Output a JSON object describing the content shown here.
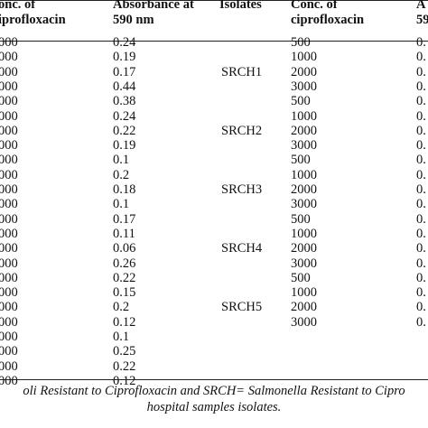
{
  "table": {
    "headers": {
      "conc_left_line1": "onc.  of",
      "conc_left_line2": "iprofloxacin",
      "absorbance_left_line1": "Absorbance at",
      "absorbance_left_line2": "590 nm",
      "isolates": "Isolates",
      "conc_right_line1": "Conc.  of",
      "conc_right_line2": "ciprofloxacin",
      "absorbance_right_line1": "A",
      "absorbance_right_line2": "59"
    },
    "left_rows": [
      {
        "conc": "000",
        "abs": "0.24"
      },
      {
        "conc": "000",
        "abs": "0.19"
      },
      {
        "conc": "000",
        "abs": "0.17"
      },
      {
        "conc": "000",
        "abs": "0.44"
      },
      {
        "conc": "000",
        "abs": "0.38"
      },
      {
        "conc": "000",
        "abs": "0.24"
      },
      {
        "conc": "000",
        "abs": "0.22"
      },
      {
        "conc": "000",
        "abs": "0.19"
      },
      {
        "conc": "000",
        "abs": "0.1"
      },
      {
        "conc": "000",
        "abs": "0.2"
      },
      {
        "conc": "000",
        "abs": "0.18"
      },
      {
        "conc": "000",
        "abs": "0.1"
      },
      {
        "conc": "000",
        "abs": "0.17"
      },
      {
        "conc": "000",
        "abs": "0.11"
      },
      {
        "conc": "000",
        "abs": "0.06"
      },
      {
        "conc": "000",
        "abs": "0.26"
      },
      {
        "conc": "000",
        "abs": "0.22"
      },
      {
        "conc": "000",
        "abs": "0.15"
      },
      {
        "conc": "000",
        "abs": "0.2"
      },
      {
        "conc": "000",
        "abs": "0.12"
      },
      {
        "conc": "000",
        "abs": "0.1"
      },
      {
        "conc": "000",
        "abs": "0.25"
      },
      {
        "conc": "000",
        "abs": "0.22"
      },
      {
        "conc": "000",
        "abs": "0.12"
      }
    ],
    "right_rows": [
      {
        "isolate": "",
        "conc": "500",
        "abs": "0."
      },
      {
        "isolate": "",
        "conc": "1000",
        "abs": "0."
      },
      {
        "isolate": "SRCH1",
        "conc": "2000",
        "abs": "0."
      },
      {
        "isolate": "",
        "conc": "3000",
        "abs": "0."
      },
      {
        "isolate": "",
        "conc": "500",
        "abs": "0."
      },
      {
        "isolate": "",
        "conc": "1000",
        "abs": "0."
      },
      {
        "isolate": "SRCH2",
        "conc": "2000",
        "abs": "0."
      },
      {
        "isolate": "",
        "conc": "3000",
        "abs": "0."
      },
      {
        "isolate": "",
        "conc": "500",
        "abs": "0."
      },
      {
        "isolate": "",
        "conc": "1000",
        "abs": "0."
      },
      {
        "isolate": "SRCH3",
        "conc": "2000",
        "abs": "0."
      },
      {
        "isolate": "",
        "conc": "3000",
        "abs": "0."
      },
      {
        "isolate": "",
        "conc": "500",
        "abs": "0."
      },
      {
        "isolate": "",
        "conc": "1000",
        "abs": "0."
      },
      {
        "isolate": "SRCH4",
        "conc": "2000",
        "abs": "0."
      },
      {
        "isolate": "",
        "conc": "3000",
        "abs": "0."
      },
      {
        "isolate": "",
        "conc": "500",
        "abs": "0."
      },
      {
        "isolate": "",
        "conc": "1000",
        "abs": "0."
      },
      {
        "isolate": "SRCH5",
        "conc": "2000",
        "abs": "0."
      },
      {
        "isolate": "",
        "conc": "3000",
        "abs": "0."
      }
    ]
  },
  "caption": {
    "line1": "oli Resistant to Ciprofloxacin and SRCH= Salmonella Resistant to Cipro",
    "line2": "hospital samples isolates."
  }
}
